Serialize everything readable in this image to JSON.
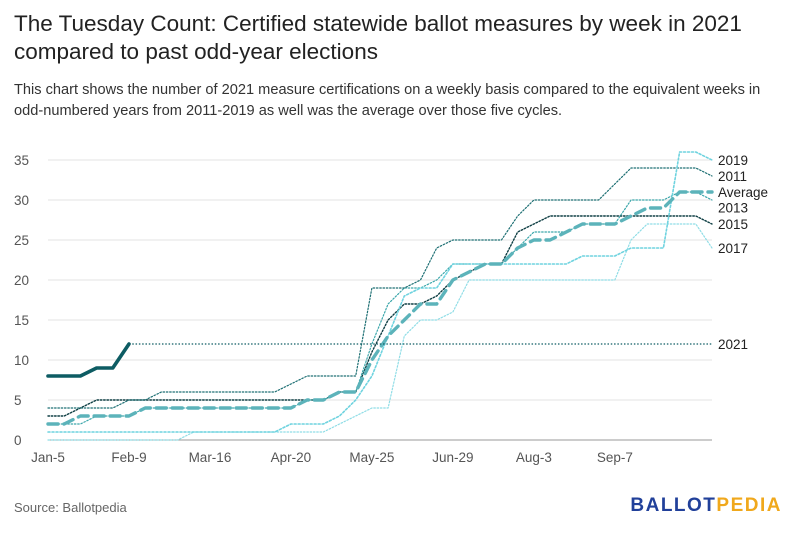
{
  "header": {
    "title": "The Tuesday Count: Certified statewide ballot measures by week in 2021 compared to past odd-year elections",
    "subtitle": "This chart shows the number of 2021 measure certifications on a weekly basis compared to the equivalent weeks in odd-numbered years from 2011-2019 as well was the average over those five cycles."
  },
  "footer": {
    "source": "Source: Ballotpedia",
    "logo_part1": "BALLOT",
    "logo_part2": "PEDIA"
  },
  "colors": {
    "y2021": "#0d5c63",
    "y2019": "#6fd3df",
    "y2011": "#1d6f73",
    "y2013": "#3ca7ab",
    "y2015": "#0f3f44",
    "y2017": "#8fdde6",
    "average": "#5cb3ba"
  },
  "chart_data": {
    "type": "line",
    "x_tick_labels": [
      "Jan-5",
      "Feb-9",
      "Mar-16",
      "Apr-20",
      "May-25",
      "Jun-29",
      "Aug-3",
      "Sep-7"
    ],
    "x_tick_positions": [
      0,
      5,
      10,
      15,
      20,
      25,
      30,
      35
    ],
    "xlim": [
      0,
      41
    ],
    "ylim": [
      0,
      35
    ],
    "y_ticks": [
      0,
      5,
      10,
      15,
      20,
      25,
      30,
      35
    ],
    "grid": "horizontal",
    "series": [
      {
        "name": "2019",
        "style": "dotted-light",
        "x": [
          0,
          1,
          2,
          3,
          4,
          5,
          6,
          7,
          8,
          9,
          10,
          11,
          12,
          13,
          14,
          15,
          16,
          17,
          18,
          19,
          20,
          21,
          22,
          23,
          24,
          25,
          26,
          27,
          28,
          29,
          30,
          31,
          32,
          33,
          34,
          35,
          36,
          37,
          38,
          39,
          40,
          41
        ],
        "values": [
          1,
          1,
          1,
          1,
          1,
          1,
          1,
          1,
          1,
          1,
          1,
          1,
          1,
          1,
          1,
          2,
          2,
          2,
          3,
          5,
          8,
          13,
          18,
          19,
          19,
          22,
          22,
          22,
          22,
          22,
          22,
          22,
          22,
          23,
          23,
          23,
          24,
          24,
          24,
          36,
          36,
          35
        ]
      },
      {
        "name": "2011",
        "style": "dotted-dark",
        "x": [
          0,
          1,
          2,
          3,
          4,
          5,
          6,
          7,
          8,
          9,
          10,
          11,
          12,
          13,
          14,
          15,
          16,
          17,
          18,
          19,
          20,
          21,
          22,
          23,
          24,
          25,
          26,
          27,
          28,
          29,
          30,
          31,
          32,
          33,
          34,
          35,
          36,
          37,
          38,
          39,
          40,
          41
        ],
        "values": [
          4,
          4,
          4,
          4,
          4,
          5,
          5,
          6,
          6,
          6,
          6,
          6,
          6,
          6,
          6,
          7,
          8,
          8,
          8,
          8,
          19,
          19,
          19,
          20,
          24,
          25,
          25,
          25,
          25,
          28,
          30,
          30,
          30,
          30,
          30,
          32,
          34,
          34,
          34,
          34,
          34,
          33
        ]
      },
      {
        "name": "2013",
        "style": "dotted-mid",
        "x": [
          0,
          1,
          2,
          3,
          4,
          5,
          6,
          7,
          8,
          9,
          10,
          11,
          12,
          13,
          14,
          15,
          16,
          17,
          18,
          19,
          20,
          21,
          22,
          23,
          24,
          25,
          26,
          27,
          28,
          29,
          30,
          31,
          32,
          33,
          34,
          35,
          36,
          37,
          38,
          39,
          40,
          41
        ],
        "values": [
          2,
          2,
          2,
          3,
          3,
          3,
          4,
          4,
          4,
          4,
          4,
          4,
          4,
          4,
          4,
          4,
          5,
          5,
          6,
          6,
          12,
          17,
          19,
          19,
          20,
          22,
          22,
          22,
          22,
          24,
          26,
          26,
          26,
          27,
          27,
          27,
          30,
          30,
          30,
          31,
          31,
          30
        ]
      },
      {
        "name": "Average",
        "style": "dashed-thick",
        "x": [
          0,
          1,
          2,
          3,
          4,
          5,
          6,
          7,
          8,
          9,
          10,
          11,
          12,
          13,
          14,
          15,
          16,
          17,
          18,
          19,
          20,
          21,
          22,
          23,
          24,
          25,
          26,
          27,
          28,
          29,
          30,
          31,
          32,
          33,
          34,
          35,
          36,
          37,
          38,
          39,
          40,
          41
        ],
        "values": [
          2,
          2,
          3,
          3,
          3,
          3,
          4,
          4,
          4,
          4,
          4,
          4,
          4,
          4,
          4,
          4,
          5,
          5,
          6,
          6,
          10,
          13,
          15,
          17,
          17,
          20,
          21,
          22,
          22,
          24,
          25,
          25,
          26,
          27,
          27,
          27,
          28,
          29,
          29,
          31,
          31,
          31
        ]
      },
      {
        "name": "2015",
        "style": "dotted-darkest",
        "x": [
          0,
          1,
          2,
          3,
          4,
          5,
          6,
          7,
          8,
          9,
          10,
          11,
          12,
          13,
          14,
          15,
          16,
          17,
          18,
          19,
          20,
          21,
          22,
          23,
          24,
          25,
          26,
          27,
          28,
          29,
          30,
          31,
          32,
          33,
          34,
          35,
          36,
          37,
          38,
          39,
          40,
          41
        ],
        "values": [
          3,
          3,
          4,
          5,
          5,
          5,
          5,
          5,
          5,
          5,
          5,
          5,
          5,
          5,
          5,
          5,
          5,
          5,
          6,
          6,
          11,
          15,
          17,
          17,
          18,
          20,
          21,
          22,
          22,
          26,
          27,
          28,
          28,
          28,
          28,
          28,
          28,
          28,
          28,
          28,
          28,
          27
        ]
      },
      {
        "name": "2017",
        "style": "dotted-faint",
        "x": [
          0,
          1,
          2,
          3,
          4,
          5,
          6,
          7,
          8,
          9,
          10,
          11,
          12,
          13,
          14,
          15,
          16,
          17,
          18,
          19,
          20,
          21,
          22,
          23,
          24,
          25,
          26,
          27,
          28,
          29,
          30,
          31,
          32,
          33,
          34,
          35,
          36,
          37,
          38,
          39,
          40,
          41
        ],
        "values": [
          0,
          0,
          0,
          0,
          0,
          0,
          0,
          0,
          0,
          1,
          1,
          1,
          1,
          1,
          1,
          1,
          1,
          1,
          2,
          3,
          4,
          4,
          13,
          15,
          15,
          16,
          20,
          20,
          20,
          20,
          20,
          20,
          20,
          20,
          20,
          20,
          25,
          27,
          27,
          27,
          27,
          24
        ]
      },
      {
        "name": "2021",
        "style": "solid-thick",
        "x": [
          0,
          1,
          2,
          3,
          4,
          5
        ],
        "values": [
          8,
          8,
          8,
          9,
          9,
          12
        ],
        "extension_value": 12
      }
    ]
  }
}
